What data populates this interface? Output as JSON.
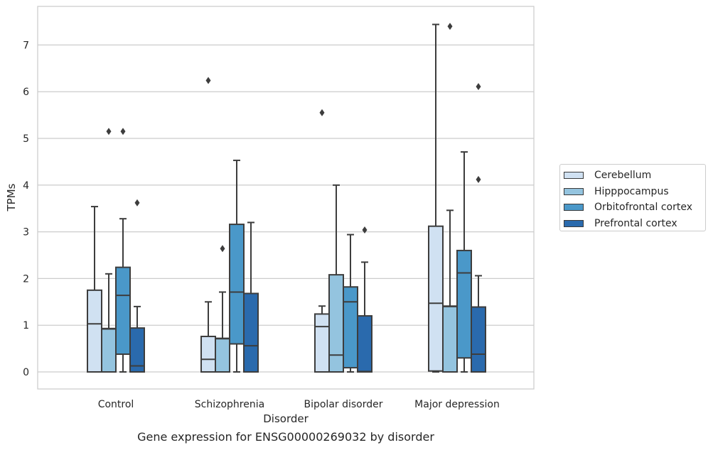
{
  "chart_data": {
    "type": "box",
    "xlabel": "Disorder",
    "ylabel": "TPMs",
    "caption": "Gene expression for ENSG00000269032 by disorder",
    "categories": [
      "Control",
      "Schizophrenia",
      "Bipolar disorder",
      "Major depression"
    ],
    "ylim": [
      -0.35,
      7.85
    ],
    "yticks": [
      0,
      1,
      2,
      3,
      4,
      5,
      6,
      7
    ],
    "grid": "horizontal",
    "legend_position": "right",
    "series": [
      {
        "name": "Cerebellum",
        "color": "#d0e1f2",
        "boxes": [
          {
            "min": 0,
            "q1": 0,
            "median": 1.03,
            "q3": 1.75,
            "max": 3.54,
            "outliers": []
          },
          {
            "min": 0,
            "q1": 0,
            "median": 0.27,
            "q3": 0.76,
            "max": 1.5,
            "outliers": [
              6.24
            ]
          },
          {
            "min": 0,
            "q1": 0,
            "median": 0.97,
            "q3": 1.24,
            "max": 1.41,
            "outliers": [
              5.55
            ]
          },
          {
            "min": 0,
            "q1": 0.02,
            "median": 1.47,
            "q3": 3.12,
            "max": 7.44,
            "outliers": []
          }
        ]
      },
      {
        "name": "Hipppocampus",
        "color": "#94c4df",
        "boxes": [
          {
            "min": 0,
            "q1": 0,
            "median": 0.92,
            "q3": 0.93,
            "max": 2.1,
            "outliers": [
              5.15
            ]
          },
          {
            "min": 0,
            "q1": 0,
            "median": 0.71,
            "q3": 0.72,
            "max": 1.71,
            "outliers": [
              2.64
            ]
          },
          {
            "min": 0,
            "q1": 0,
            "median": 0.36,
            "q3": 2.08,
            "max": 4.0,
            "outliers": []
          },
          {
            "min": 0,
            "q1": 0,
            "median": 1.4,
            "q3": 1.41,
            "max": 3.46,
            "outliers": [
              7.4
            ]
          }
        ]
      },
      {
        "name": "Orbitofrontal cortex",
        "color": "#4a98c9",
        "boxes": [
          {
            "min": 0,
            "q1": 0.38,
            "median": 1.64,
            "q3": 2.24,
            "max": 3.28,
            "outliers": [
              5.15
            ]
          },
          {
            "min": 0,
            "q1": 0.6,
            "median": 1.71,
            "q3": 3.16,
            "max": 4.53,
            "outliers": []
          },
          {
            "min": 0,
            "q1": 0.09,
            "median": 1.5,
            "q3": 1.82,
            "max": 2.94,
            "outliers": []
          },
          {
            "min": 0,
            "q1": 0.3,
            "median": 2.12,
            "q3": 2.6,
            "max": 4.71,
            "outliers": []
          }
        ]
      },
      {
        "name": "Prefrontal cortex",
        "color": "#2a6aad",
        "boxes": [
          {
            "min": 0,
            "q1": 0,
            "median": 0.13,
            "q3": 0.94,
            "max": 1.4,
            "outliers": [
              3.62
            ]
          },
          {
            "min": 0,
            "q1": 0,
            "median": 0.56,
            "q3": 1.68,
            "max": 3.2,
            "outliers": []
          },
          {
            "min": 0,
            "q1": 0,
            "median": 0.01,
            "q3": 1.2,
            "max": 2.35,
            "outliers": [
              3.04
            ]
          },
          {
            "min": 0,
            "q1": 0,
            "median": 0.38,
            "q3": 1.39,
            "max": 2.06,
            "outliers": [
              6.11,
              4.12
            ]
          }
        ]
      }
    ]
  }
}
